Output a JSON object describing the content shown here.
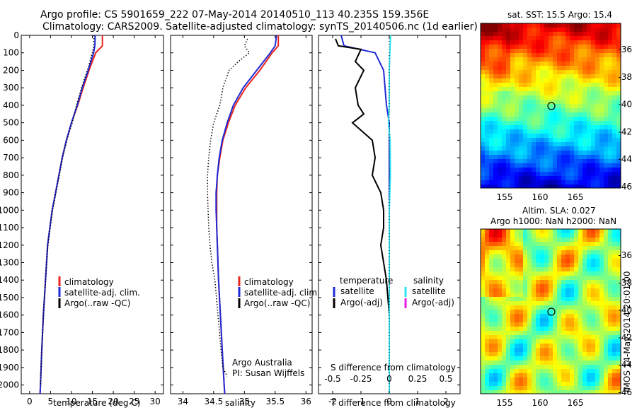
{
  "header": {
    "title_line1": "Argo profile: CS 5901659_222 07-May-2014 20140510_113 40.235S 159.356E",
    "title_line2": "Climatology: CARS2009. Satellite-adjusted climatology: synTS_20140506.nc (1d earlier)"
  },
  "colors": {
    "climatology": "#e8251e",
    "satellite": "#1f2ad6",
    "argo": "#000000",
    "salinity_satellite": "#2fe3f0",
    "argo_adj_salinity": "#e020e0"
  },
  "depth_axis": {
    "ticks": [
      "0",
      "100",
      "200",
      "300",
      "400",
      "500",
      "600",
      "700",
      "800",
      "900",
      "1000",
      "1100",
      "1200",
      "1300",
      "1400",
      "1500",
      "1600",
      "1700",
      "1800",
      "1900",
      "2000"
    ],
    "ylim": [
      0,
      2050
    ]
  },
  "temp_panel": {
    "xlabel": "temperature (deg C)",
    "xticks": [
      "0",
      "5",
      "10",
      "15",
      "20",
      "25",
      "30"
    ],
    "xlim": [
      -2,
      32
    ],
    "legend": [
      "climatology",
      "satellite-adj. clim.",
      "Argo(..raw -QC)"
    ]
  },
  "sal_panel": {
    "xlabel": "salinity",
    "xticks": [
      "34",
      "34.5",
      "35",
      "35.5",
      "36"
    ],
    "xlim": [
      33.8,
      36.1
    ],
    "legend": [
      "climatology",
      "satellite-adj. clim.",
      "Argo(..raw -QC)"
    ],
    "credit_line1": "Argo Australia",
    "credit_line2": "PI: Susan Wijffels"
  },
  "diff_panel": {
    "xlabel": "T difference from climatology",
    "top_label": "S difference from climatology",
    "xticks_bottom": [
      "-2",
      "-1",
      "0",
      "1",
      "2"
    ],
    "xticks_top": [
      "-0.5",
      "-0.25",
      "0",
      "0.25",
      "0.5"
    ],
    "legend_temp_title": "temperature",
    "legend_sal_title": "salinity",
    "legend_temp": [
      "satellite",
      "Argo(-adj)"
    ],
    "legend_sal": [
      "satellite",
      "Argo(-adj)"
    ]
  },
  "map_sst": {
    "title": "sat. SST: 15.5 Argo: 15.4",
    "xticks": [
      "155",
      "160",
      "165"
    ],
    "yticks": [
      "-36",
      "-38",
      "-40",
      "-42",
      "-44",
      "-46"
    ]
  },
  "map_sla": {
    "title_line1": "Altim. SLA: 0.027",
    "title_line2": "Argo h1000: NaN h2000: NaN",
    "xticks": [
      "155",
      "160",
      "165"
    ],
    "yticks": [
      "-36",
      "-38",
      "-40",
      "-42",
      "-44",
      "-46"
    ]
  },
  "footer_stamp": "IMOS 14-May-2014 20:01:00",
  "chart_data": [
    {
      "type": "line",
      "panel": "temperature",
      "ylabel": "",
      "xlabel": "temperature (deg C)",
      "xlim": [
        -2,
        32
      ],
      "ylim": [
        0,
        2050
      ],
      "y_inverted": true,
      "series": [
        {
          "name": "climatology",
          "depth": [
            0,
            60,
            100,
            200,
            300,
            400,
            500,
            600,
            700,
            800,
            900,
            1000,
            1200,
            1400,
            1600,
            1800,
            2000,
            2050
          ],
          "values": [
            17.4,
            17.4,
            15.8,
            14.2,
            12.8,
            11.5,
            10.0,
            8.8,
            7.8,
            7.0,
            6.2,
            5.4,
            4.3,
            3.8,
            3.3,
            2.9,
            2.6,
            2.5
          ]
        },
        {
          "name": "satellite-adj. clim.",
          "depth": [
            0,
            60,
            100,
            200,
            300,
            400,
            500,
            600,
            700,
            800,
            900,
            1000,
            1200,
            1400,
            1600,
            1800,
            2000,
            2050
          ],
          "values": [
            15.7,
            15.6,
            15.3,
            14.0,
            12.6,
            11.4,
            10.0,
            8.8,
            7.8,
            7.0,
            6.2,
            5.4,
            4.3,
            3.8,
            3.3,
            2.9,
            2.6,
            2.5
          ]
        },
        {
          "name": "Argo(..raw -QC)",
          "depth": [
            0,
            60,
            100,
            200,
            300,
            400,
            500,
            600,
            700,
            800,
            900,
            1000,
            1200,
            1400,
            1600,
            1800,
            2000
          ],
          "values": [
            15.4,
            15.3,
            15.0,
            13.8,
            12.4,
            11.2,
            10.2,
            8.9,
            7.9,
            7.1,
            6.3,
            5.5,
            4.4,
            3.8,
            3.3,
            2.9,
            2.6
          ]
        }
      ]
    },
    {
      "type": "line",
      "panel": "salinity",
      "xlabel": "salinity",
      "xlim": [
        33.8,
        36.1
      ],
      "ylim": [
        0,
        2050
      ],
      "y_inverted": true,
      "series": [
        {
          "name": "climatology",
          "depth": [
            0,
            60,
            100,
            200,
            300,
            400,
            500,
            600,
            700,
            800,
            900,
            1000,
            1100,
            1200,
            1400,
            1600,
            1800,
            2000,
            2050
          ],
          "values": [
            35.55,
            35.55,
            35.45,
            35.25,
            35.02,
            34.85,
            34.74,
            34.65,
            34.6,
            34.56,
            34.55,
            34.55,
            34.55,
            34.56,
            34.58,
            34.61,
            34.64,
            34.67,
            34.68
          ]
        },
        {
          "name": "satellite-adj. clim.",
          "depth": [
            0,
            60,
            100,
            200,
            300,
            400,
            500,
            600,
            700,
            800,
            900,
            1000,
            1100,
            1200,
            1400,
            1600,
            1800,
            2000,
            2050
          ],
          "values": [
            35.52,
            35.5,
            35.42,
            35.2,
            34.98,
            34.82,
            34.72,
            34.64,
            34.59,
            34.56,
            34.54,
            34.54,
            34.55,
            34.56,
            34.58,
            34.61,
            34.64,
            34.67,
            34.68
          ]
        },
        {
          "name": "Argo(..raw -QC)",
          "depth": [
            20,
            60,
            100,
            150,
            200,
            300,
            400,
            500,
            600,
            700,
            800,
            900,
            1000,
            1100,
            1200,
            1300,
            1400,
            1600,
            1800,
            1900,
            1950
          ],
          "values": [
            35.05,
            35.0,
            35.08,
            34.9,
            34.75,
            34.65,
            34.6,
            34.5,
            34.45,
            34.42,
            34.4,
            34.4,
            34.41,
            34.42,
            34.44,
            34.47,
            34.52,
            34.57,
            34.62,
            34.65,
            34.72
          ]
        }
      ]
    },
    {
      "type": "line",
      "panel": "difference",
      "xlabel": "T difference from climatology",
      "xlim": [
        -2.5,
        2.5
      ],
      "ylim": [
        0,
        2050
      ],
      "y_inverted": true,
      "series": [
        {
          "name": "satellite",
          "depth": [
            0,
            60,
            100,
            200,
            300,
            400,
            500,
            600,
            800,
            1000,
            1200,
            1400,
            1600,
            1800,
            2000,
            2050
          ],
          "values": [
            -1.7,
            -1.6,
            -0.5,
            -0.2,
            -0.15,
            -0.1,
            0,
            0,
            0,
            0,
            0,
            0,
            0,
            0,
            0,
            0
          ]
        },
        {
          "name": "Argo(-adj)",
          "depth": [
            20,
            60,
            80,
            150,
            200,
            300,
            400,
            450,
            500,
            600,
            700,
            800,
            900,
            1000,
            1100,
            1200,
            1400,
            1600,
            1800,
            2000
          ],
          "values": [
            -1.9,
            -1.8,
            -1.0,
            -1.2,
            -0.9,
            -1.2,
            -1.1,
            -0.9,
            -1.3,
            -0.6,
            -0.5,
            -0.6,
            -0.3,
            -0.2,
            -0.2,
            -0.3,
            -0.1,
            0,
            0,
            0
          ]
        },
        {
          "name": "salinity satellite",
          "depth": [
            0,
            60,
            100,
            200,
            300,
            400,
            500,
            600,
            800,
            1000,
            1200,
            1400,
            1600,
            1800,
            2000,
            2050
          ],
          "values": [
            0.05,
            0.03,
            0.02,
            0.0,
            0.0,
            0.0,
            -0.03,
            0.03,
            0.04,
            0.0,
            0.0,
            0.0,
            0.0,
            0.0,
            0.0,
            0.0
          ]
        }
      ]
    }
  ]
}
